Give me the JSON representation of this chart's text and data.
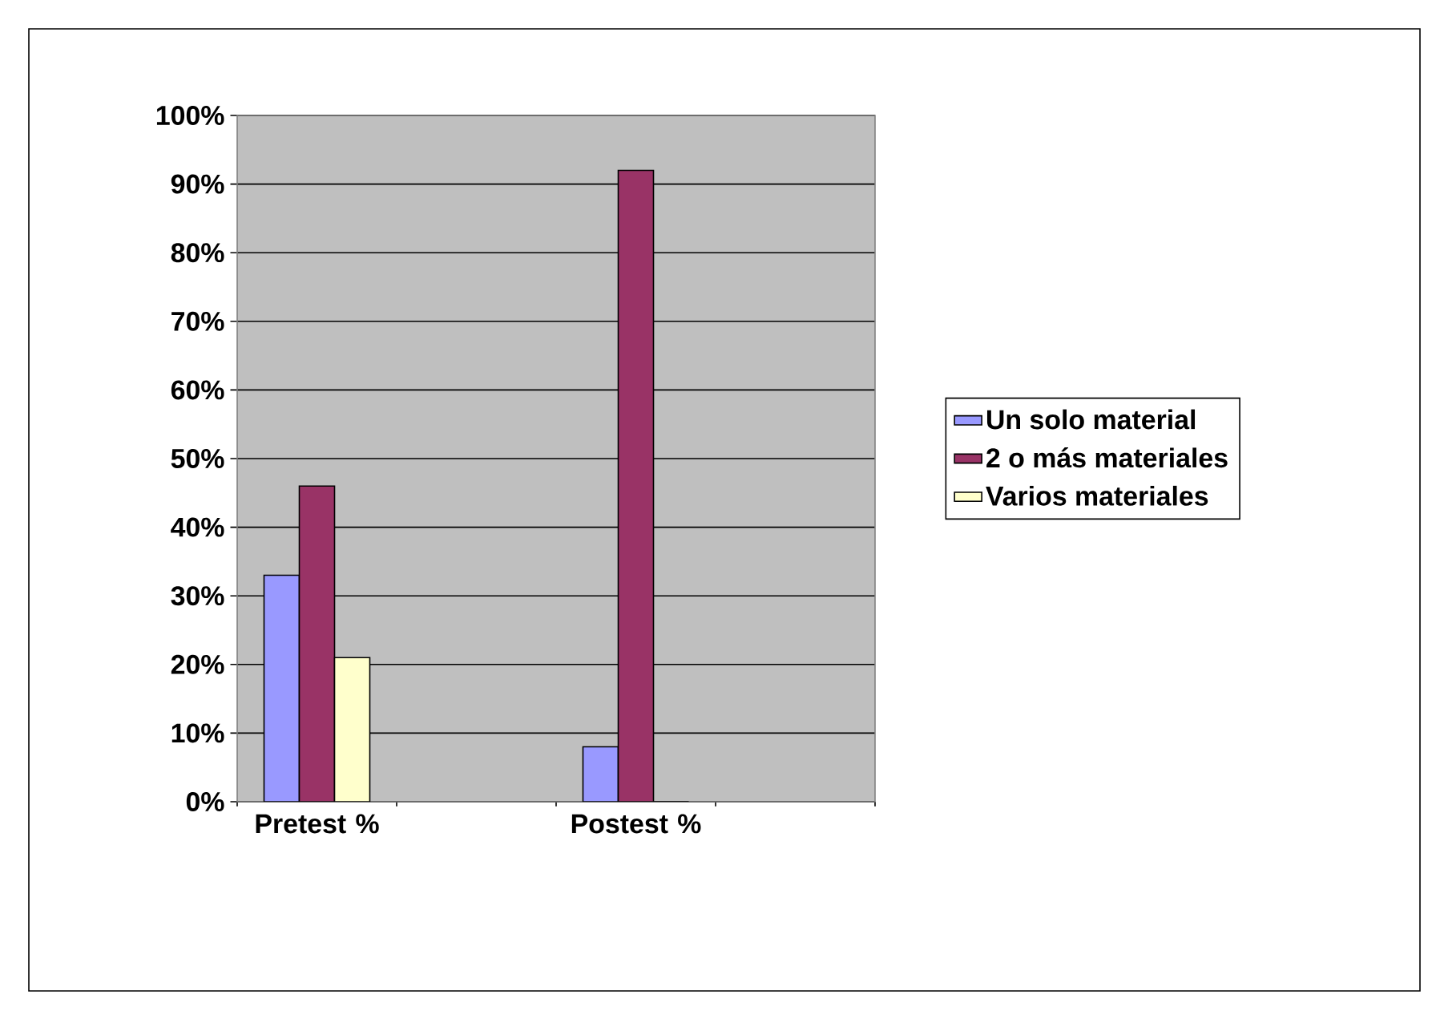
{
  "chart_data": {
    "type": "bar",
    "categories": [
      "Pretest %",
      null,
      "Postest %",
      null
    ],
    "series": [
      {
        "name": "Un solo material",
        "color": "#9999ff",
        "values": [
          33,
          null,
          8,
          null
        ]
      },
      {
        "name": "2 o más materiales",
        "color": "#993366",
        "values": [
          46,
          null,
          92,
          null
        ]
      },
      {
        "name": "Varios materiales",
        "color": "#ffffcc",
        "values": [
          21,
          null,
          0,
          null
        ]
      }
    ],
    "ylim": [
      0,
      100
    ],
    "yticks": [
      {
        "value": 0,
        "label": "0%"
      },
      {
        "value": 10,
        "label": "10%"
      },
      {
        "value": 20,
        "label": "20%"
      },
      {
        "value": 30,
        "label": "30%"
      },
      {
        "value": 40,
        "label": "40%"
      },
      {
        "value": 50,
        "label": "50%"
      },
      {
        "value": 60,
        "label": "60%"
      },
      {
        "value": 70,
        "label": "70%"
      },
      {
        "value": 80,
        "label": "80%"
      },
      {
        "value": 90,
        "label": "90%"
      },
      {
        "value": 100,
        "label": "100%"
      }
    ],
    "grid": "y",
    "legend": "right"
  }
}
